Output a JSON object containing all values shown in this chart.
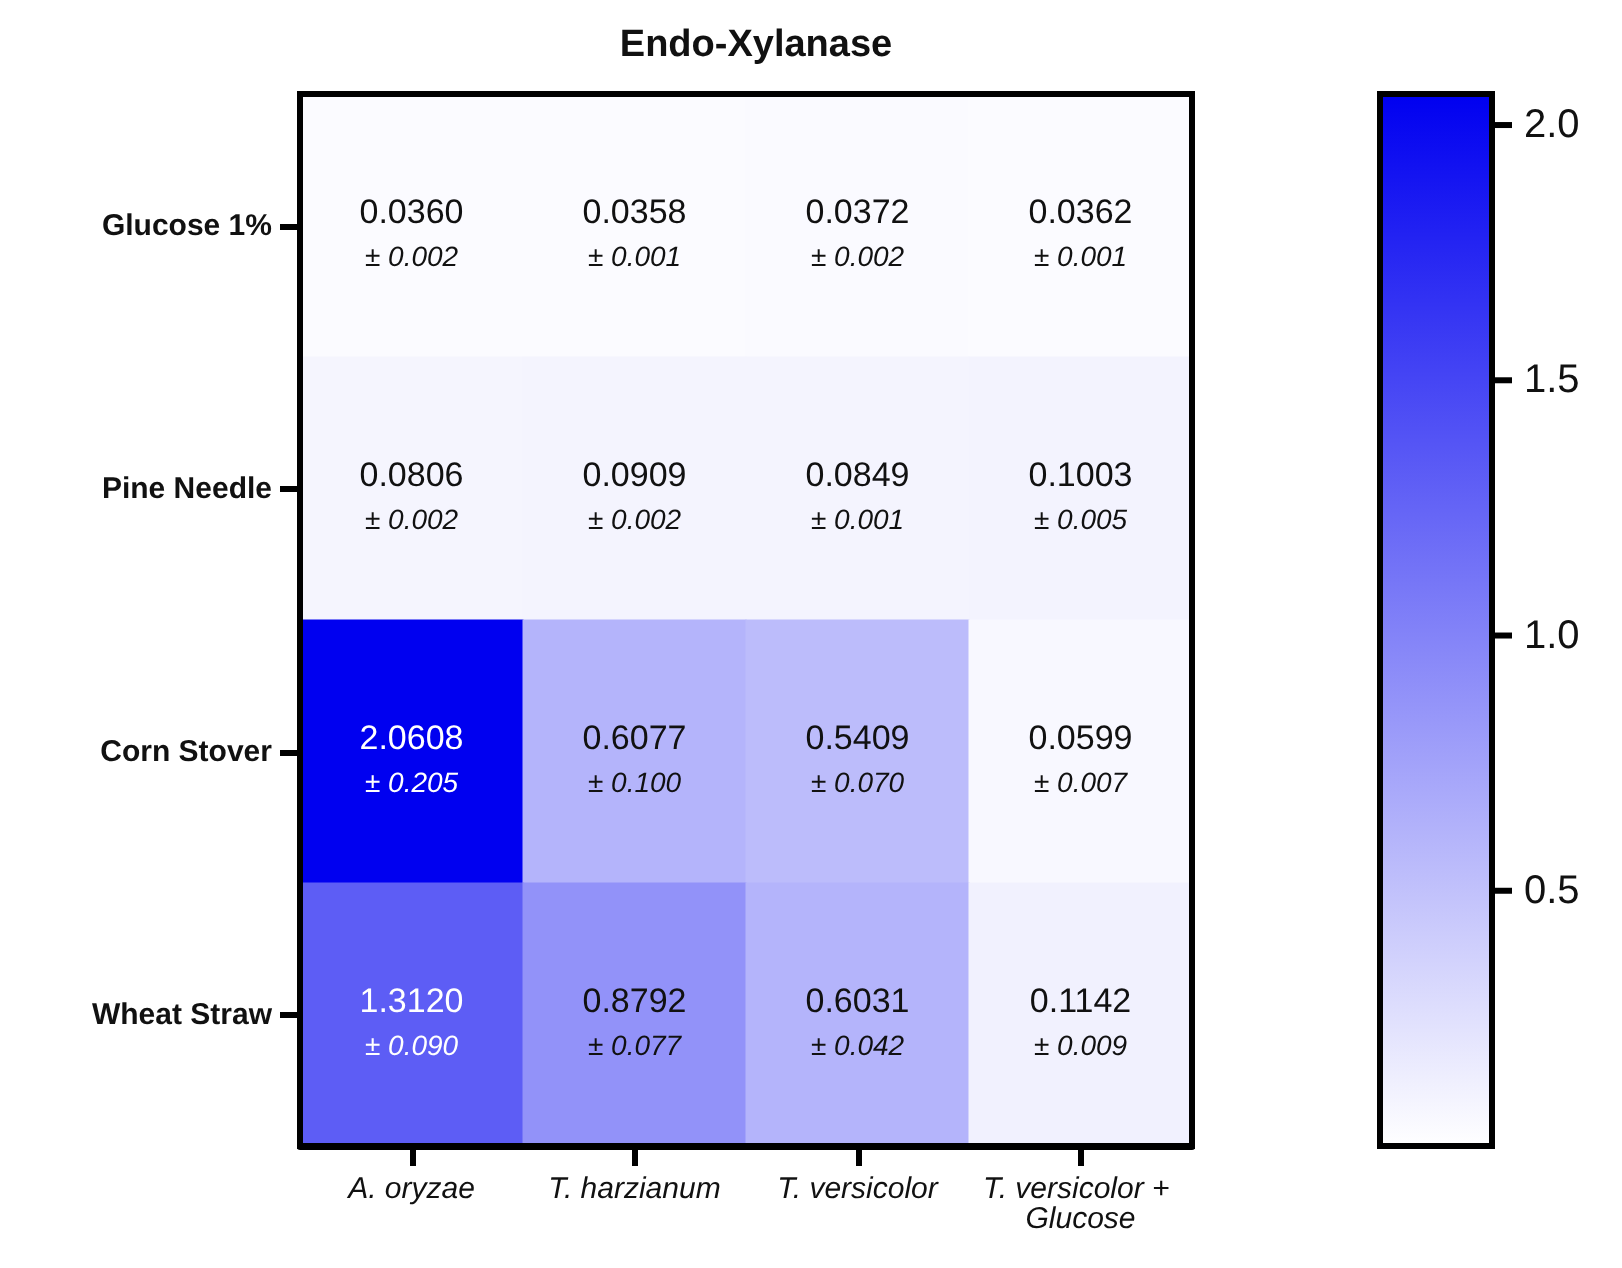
{
  "chart_data": {
    "type": "heatmap",
    "title": "Endo-Xylanase",
    "categories": [
      "A. oryzae",
      "T. harzianum",
      "T. versicolor",
      "T. versicolor + Glucose"
    ],
    "y_categories": [
      "Glucose 1%",
      "Pine Needle",
      "Corn Stover",
      "Wheat Straw"
    ],
    "cells": [
      [
        0.036,
        0.0358,
        0.0372,
        0.0362
      ],
      [
        0.0806,
        0.0909,
        0.0849,
        0.1003
      ],
      [
        2.0608,
        0.6077,
        0.5409,
        0.0599
      ],
      [
        1.312,
        0.8792,
        0.6031,
        0.1142
      ]
    ],
    "cell_labels": [
      [
        "0.0360\n± 0.002",
        "0.0358\n± 0.001",
        "0.0372\n± 0.002",
        "0.0362\n± 0.001"
      ],
      [
        "0.0806\n± 0.002",
        "0.0909\n± 0.002",
        "0.0849\n± 0.001",
        "0.1003\n± 0.005"
      ],
      [
        "2.0608\n± 0.205",
        "0.6077\n± 0.100",
        "0.5409\n± 0.070",
        "0.0599\n± 0.007"
      ],
      [
        "1.3120\n± 0.090",
        "0.8792\n± 0.077",
        "0.6031\n± 0.042",
        "0.1142\n± 0.009"
      ]
    ],
    "clim": [
      0,
      2.0608
    ],
    "cticks": [
      0.5,
      {
        "value": 1,
        "label": "1.0"
      },
      1.5,
      {
        "value": 2,
        "label": "2.0"
      }
    ]
  }
}
